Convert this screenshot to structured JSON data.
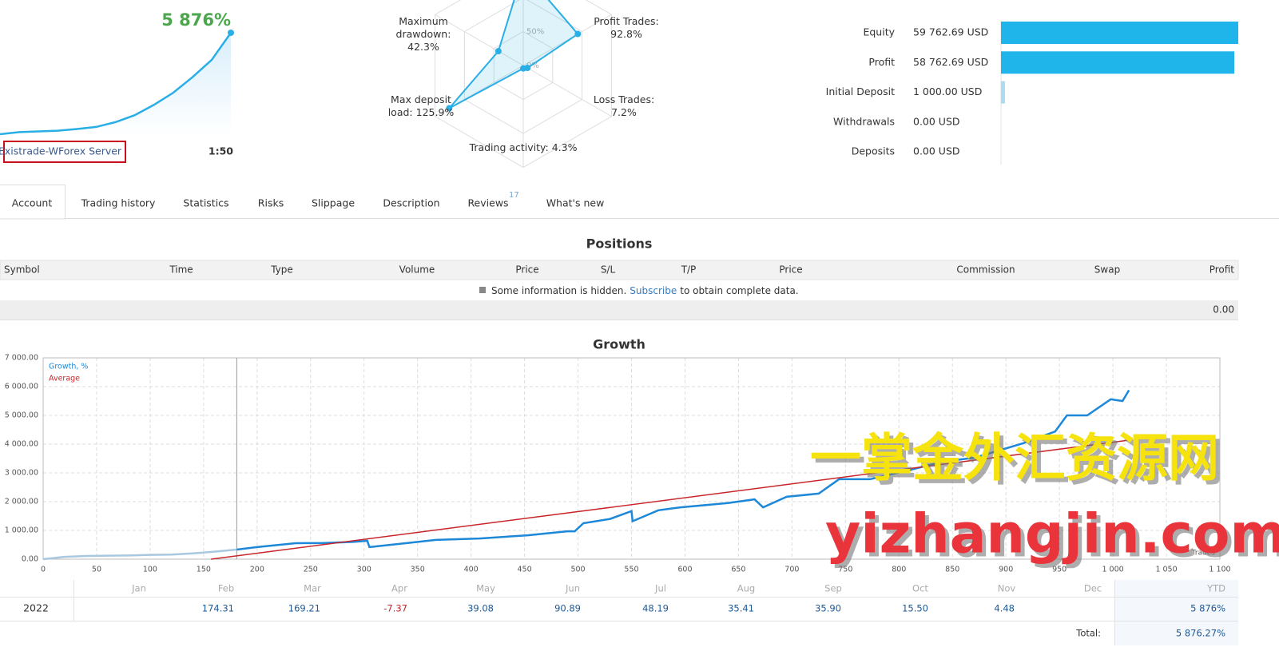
{
  "summary": {
    "growth_label": "5 876%",
    "server": "Existrade-WForex Server",
    "leverage": "1:50",
    "sparkline": [
      0,
      120,
      160,
      200,
      300,
      420,
      700,
      1100,
      1700,
      2400,
      3300,
      4300,
      5876
    ]
  },
  "radar": {
    "ticks": [
      {
        "value": 0,
        "label": "0%"
      },
      {
        "value": 50,
        "label": "50%"
      }
    ],
    "axes": [
      {
        "name": null,
        "value_label": null,
        "value": 140
      },
      {
        "name": "Profit Trades:",
        "value_label": "92.8%",
        "value": 92.8
      },
      {
        "name": "Loss Trades:",
        "value_label": "7.2%",
        "value": 7.2
      },
      {
        "name": "Trading activity:",
        "value_label": "4.3%",
        "value": 4.3
      },
      {
        "name": "Max deposit load:",
        "value_label": "125.9%",
        "value": 125.9
      },
      {
        "name": "Maximum drawdown:",
        "value_label": "42.3%",
        "value": 42.3
      }
    ]
  },
  "balance": {
    "rows": [
      {
        "label": "Equity",
        "value": 59762.69,
        "value_label": "59 762.69 USD",
        "color": "#1fb5ea"
      },
      {
        "label": "Profit",
        "value": 58762.69,
        "value_label": "58 762.69 USD",
        "color": "#1fb5ea"
      },
      {
        "label": "Initial Deposit",
        "value": 1000,
        "value_label": "1 000.00 USD",
        "color": "#a9dcf0"
      },
      {
        "label": "Withdrawals",
        "value": 0,
        "value_label": "0.00 USD",
        "color": "#1fb5ea"
      },
      {
        "label": "Deposits",
        "value": 0,
        "value_label": "0.00 USD",
        "color": "#1fb5ea"
      }
    ]
  },
  "tabs": {
    "items": [
      "Account",
      "Trading history",
      "Statistics",
      "Risks",
      "Slippage",
      "Description",
      "Reviews",
      "What's new"
    ],
    "reviews_count": "17",
    "active": "Account"
  },
  "positions": {
    "title": "Positions",
    "columns": [
      "Symbol",
      "Time",
      "Type",
      "Volume",
      "Price",
      "S/L",
      "T/P",
      "Price",
      "Commission",
      "Swap",
      "Profit"
    ],
    "notice": {
      "before": "Some information is hidden.",
      "link": "Subscribe",
      "after": "to obtain complete data."
    },
    "total": "0.00"
  },
  "growth": {
    "type": "line",
    "title": "Growth",
    "x_label": "Trades",
    "grid": true,
    "xlim": [
      0,
      1100
    ],
    "xticks": [
      0,
      50,
      100,
      150,
      200,
      250,
      300,
      350,
      400,
      450,
      500,
      550,
      600,
      650,
      700,
      750,
      800,
      850,
      900,
      950,
      {
        "value": 1000,
        "label": "1 000"
      },
      {
        "value": 1050,
        "label": "1 050"
      },
      {
        "value": 1100,
        "label": "1 100"
      }
    ],
    "ylim": [
      0,
      7000
    ],
    "yticks": [
      {
        "value": 0,
        "label": "0.00"
      },
      {
        "value": 1000,
        "label": "1 000.00"
      },
      {
        "value": 2000,
        "label": "2 000.00"
      },
      {
        "value": 3000,
        "label": "3 000.00"
      },
      {
        "value": 4000,
        "label": "4 000.00"
      },
      {
        "value": 5000,
        "label": "5 000.00"
      },
      {
        "value": 6000,
        "label": "6 000.00"
      },
      {
        "value": 7000,
        "label": "7 000.00"
      }
    ],
    "marker_x": 181,
    "series": [
      {
        "name": "Growth, %",
        "color": "#1e88d8",
        "early_color": "#a8c8e0",
        "x": [
          0,
          20,
          40,
          60,
          80,
          100,
          120,
          140,
          160,
          181,
          200,
          236,
          260,
          290,
          303,
          305,
          340,
          367,
          408,
          453,
          490,
          497,
          505,
          530,
          550,
          551,
          575,
          595,
          640,
          665,
          673,
          695,
          725,
          744,
          773,
          811,
          841,
          871,
          916,
          946,
          957,
          976,
          998,
          1009,
          1015
        ],
        "values": [
          0,
          80,
          110,
          120,
          130,
          150,
          160,
          200,
          260,
          333,
          420,
          556,
          560,
          600,
          640,
          420,
          560,
          670,
          720,
          830,
          970,
          970,
          1250,
          1400,
          1670,
          1320,
          1700,
          1800,
          1950,
          2080,
          1800,
          2170,
          2280,
          2780,
          2780,
          3110,
          3390,
          3530,
          4030,
          4440,
          5000,
          5000,
          5560,
          5500,
          5876
        ]
      },
      {
        "name": "Average",
        "color": "#c8262a",
        "x": [
          157,
          1015
        ],
        "values": [
          0,
          4139
        ]
      }
    ]
  },
  "monthly": {
    "columns": [
      "Jan",
      "Feb",
      "Mar",
      "Apr",
      "May",
      "Jun",
      "Jul",
      "Aug",
      "Sep",
      "Oct",
      "Nov",
      "Dec",
      "YTD"
    ],
    "rows": [
      {
        "year": "2022",
        "cells": [
          null,
          "174.31",
          "169.21",
          "-7.37",
          "39.08",
          "90.89",
          "48.19",
          "35.41",
          "35.90",
          "15.50",
          "4.48",
          null,
          "5 876%"
        ]
      }
    ],
    "total_label": "Total:",
    "total": "5 876.27%"
  },
  "watermark": {
    "cn": "一掌金外汇资源网",
    "en": "yizhangjin.com"
  }
}
